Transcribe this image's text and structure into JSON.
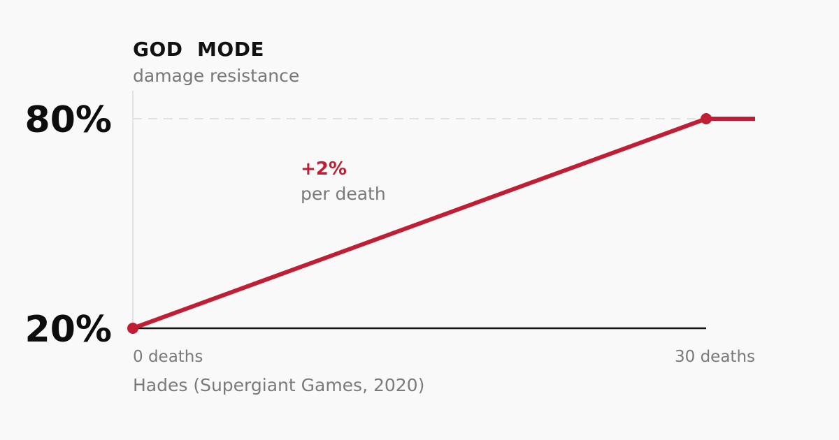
{
  "chart_data": {
    "type": "line",
    "title": "GOD  MODE",
    "subtitle": "damage resistance",
    "x": [
      0,
      30
    ],
    "y": [
      20,
      80
    ],
    "extend_flat_after_last": true,
    "xlim": [
      0,
      30
    ],
    "ylim": [
      20,
      80
    ],
    "x_ticks": [
      {
        "value": 0,
        "label": "0 deaths"
      },
      {
        "value": 30,
        "label": "30 deaths"
      }
    ],
    "y_ticks": [
      {
        "value": 20,
        "label": "20%"
      },
      {
        "value": 80,
        "label": "80%"
      }
    ],
    "annotation": {
      "value": "+2%",
      "label": "per death"
    },
    "source": "Hades (Supergiant Games, 2020)",
    "grid": "dashed line at 80% only",
    "colors": {
      "line": "#c01e35",
      "axis": "#111111",
      "grid": "#e2e2e2",
      "muted_text": "#7a7a7a",
      "background": "#f9f9f9"
    }
  }
}
